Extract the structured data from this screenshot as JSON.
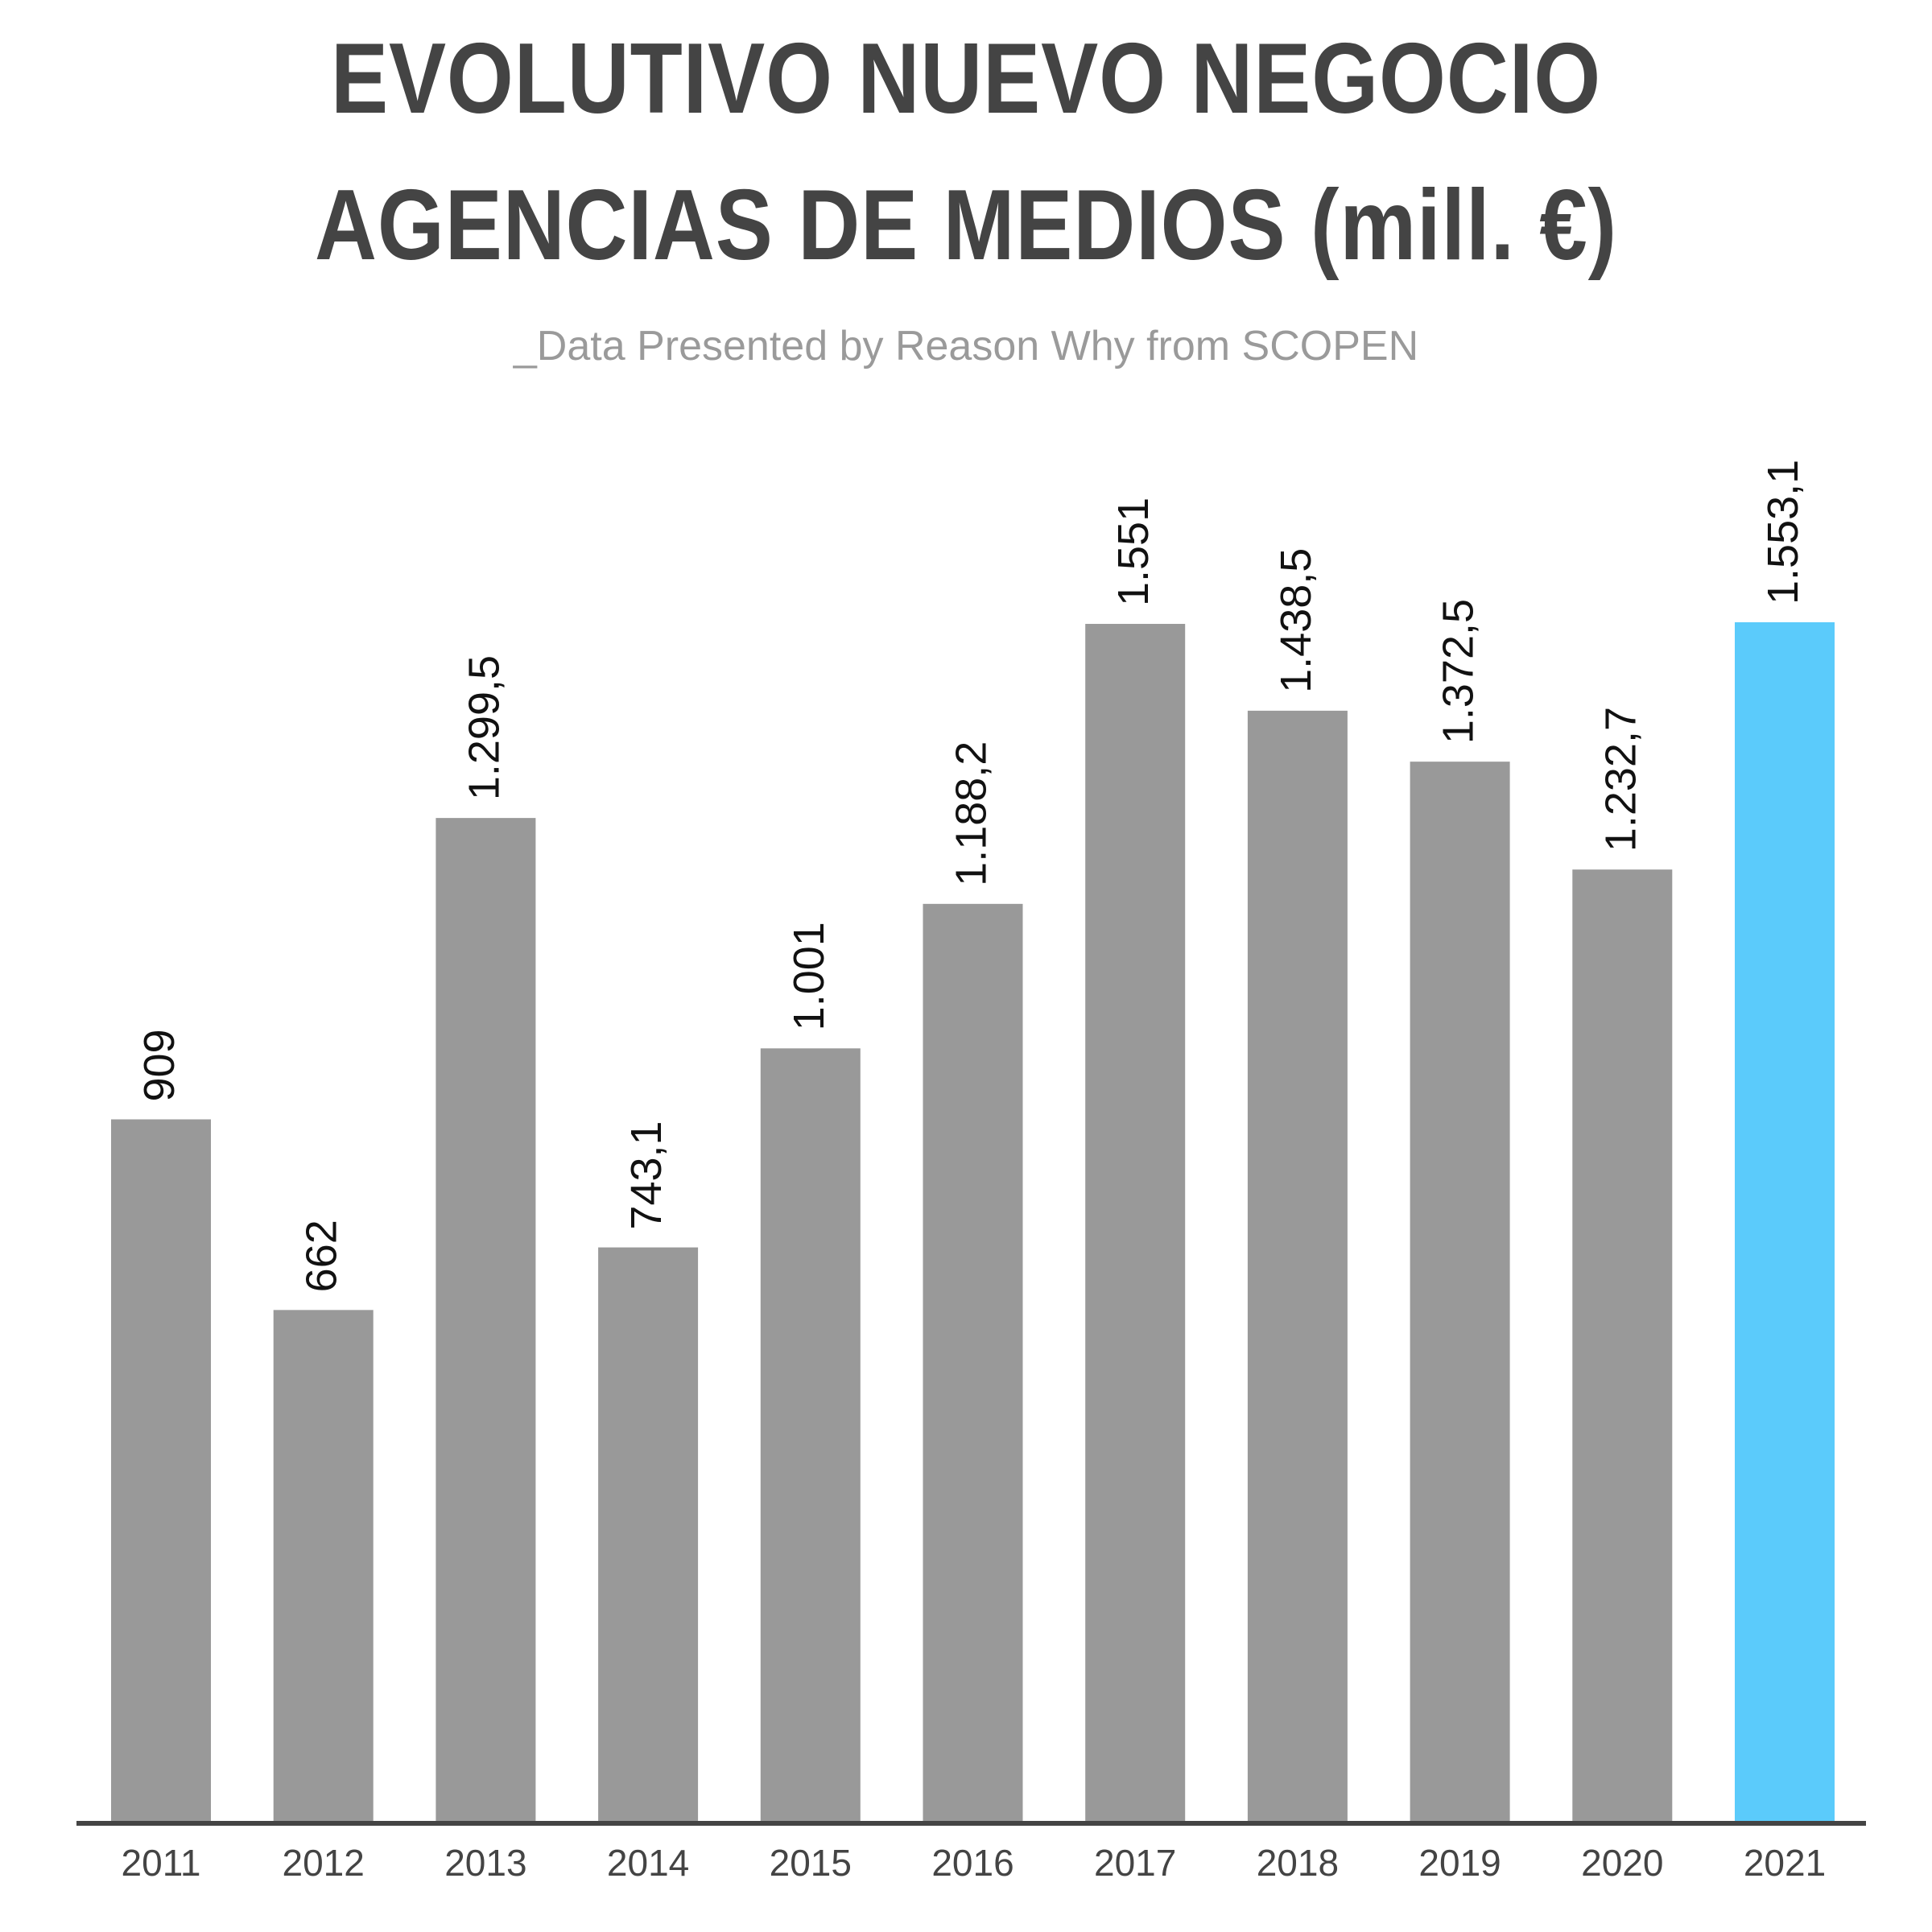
{
  "title_line1": "EVOLUTIVO NUEVO NEGOCIO",
  "title_line2": "AGENCIAS DE MEDIOS (mill. €)",
  "subtitle": "_Data Presented by Reason Why from SCOPEN",
  "colors": {
    "bar": "#999999",
    "highlight": "#5bcbfb",
    "axis": "#444444",
    "title": "#444444",
    "subtitle": "#9a9a9a",
    "label": "#111111",
    "tick": "#444444"
  },
  "chart_data": {
    "type": "bar",
    "categories": [
      "2011",
      "2012",
      "2013",
      "2014",
      "2015",
      "2016",
      "2017",
      "2018",
      "2019",
      "2020",
      "2021"
    ],
    "values": [
      909,
      662,
      1299.5,
      743.1,
      1001,
      1188.2,
      1551,
      1438.5,
      1372.5,
      1232.7,
      1553.1
    ],
    "data_labels": [
      "909",
      "662",
      "1.299,5",
      "743,1",
      "1.001",
      "1.188,2",
      "1.551",
      "1.438,5",
      "1.372,5",
      "1.232,7",
      "1.553,1"
    ],
    "highlight_index": 10,
    "title": "EVOLUTIVO NUEVO NEGOCIO AGENCIAS DE MEDIOS (mill. €)",
    "subtitle": "_Data Presented by Reason Why from SCOPEN",
    "xlabel": "",
    "ylabel": "",
    "ylim": [
      0,
      1553.1
    ],
    "grid": false,
    "legend": "none",
    "data_label_orientation": "vertical"
  }
}
